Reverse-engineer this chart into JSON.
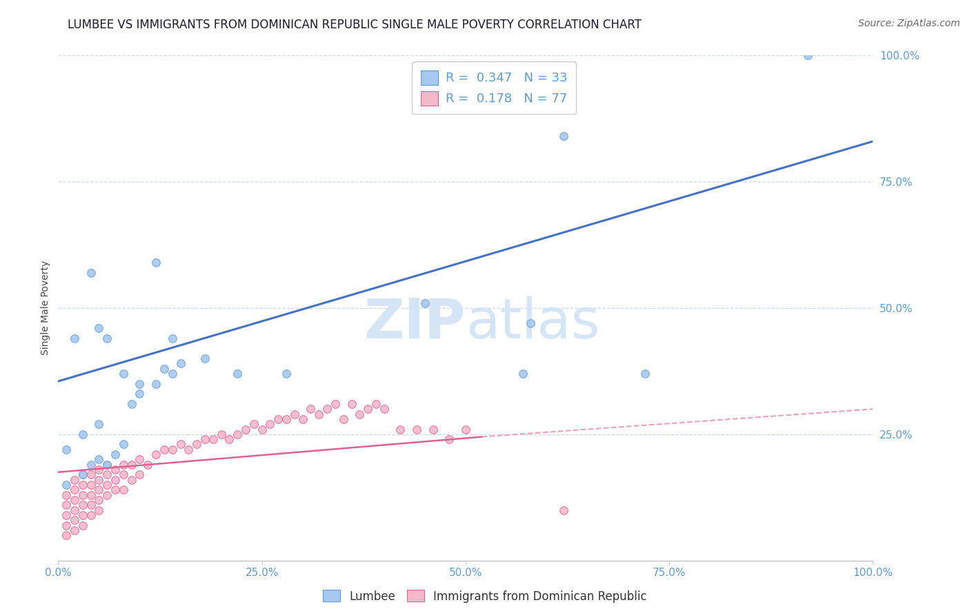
{
  "title": "LUMBEE VS IMMIGRANTS FROM DOMINICAN REPUBLIC SINGLE MALE POVERTY CORRELATION CHART",
  "source": "Source: ZipAtlas.com",
  "ylabel": "Single Male Poverty",
  "xlim": [
    0,
    1
  ],
  "ylim": [
    0,
    1
  ],
  "xticks": [
    0,
    0.25,
    0.5,
    0.75,
    1.0
  ],
  "yticks": [
    0.25,
    0.5,
    0.75,
    1.0
  ],
  "xticklabels": [
    "0.0%",
    "25.0%",
    "50.0%",
    "75.0%",
    "100.0%"
  ],
  "yticklabels": [
    "25.0%",
    "50.0%",
    "75.0%",
    "100.0%"
  ],
  "lumbee_R": 0.347,
  "lumbee_N": 33,
  "dr_R": 0.178,
  "dr_N": 77,
  "lumbee_color": "#a8c8f0",
  "dr_color": "#f5b8cb",
  "lumbee_edge_color": "#5b9bd5",
  "dr_edge_color": "#e06090",
  "lumbee_line_color": "#4472c4",
  "dr_line_color": "#e06090",
  "dr_dash_color": "#e8a0b8",
  "watermark_color": "#d5e5f5",
  "title_color": "#1a1a2e",
  "axis_tick_color": "#5b9bd5",
  "lumbee_line": {
    "x0": 0.0,
    "y0": 0.355,
    "x1": 1.0,
    "y1": 0.83
  },
  "dr_solid_line": {
    "x0": 0.0,
    "y0": 0.175,
    "x1": 0.52,
    "y1": 0.245
  },
  "dr_dash_line": {
    "x0": 0.52,
    "y0": 0.245,
    "x1": 1.0,
    "y1": 0.3
  },
  "lumbee_scatter": {
    "x": [
      0.01,
      0.04,
      0.12,
      0.14,
      0.01,
      0.03,
      0.05,
      0.06,
      0.07,
      0.08,
      0.09,
      0.1,
      0.12,
      0.14,
      0.15,
      0.02,
      0.05,
      0.06,
      0.45,
      0.58,
      0.62,
      0.57,
      0.72,
      0.92,
      0.04,
      0.08,
      0.1,
      0.13,
      0.18,
      0.22,
      0.28,
      0.05,
      0.03
    ],
    "y": [
      0.22,
      0.57,
      0.59,
      0.44,
      0.15,
      0.17,
      0.27,
      0.19,
      0.21,
      0.23,
      0.31,
      0.33,
      0.35,
      0.37,
      0.39,
      0.44,
      0.46,
      0.44,
      0.51,
      0.47,
      0.84,
      0.37,
      0.37,
      1.0,
      0.19,
      0.37,
      0.35,
      0.38,
      0.4,
      0.37,
      0.37,
      0.2,
      0.25
    ]
  },
  "dr_scatter": {
    "x": [
      0.01,
      0.01,
      0.01,
      0.01,
      0.01,
      0.02,
      0.02,
      0.02,
      0.02,
      0.02,
      0.02,
      0.03,
      0.03,
      0.03,
      0.03,
      0.03,
      0.03,
      0.04,
      0.04,
      0.04,
      0.04,
      0.04,
      0.05,
      0.05,
      0.05,
      0.05,
      0.05,
      0.06,
      0.06,
      0.06,
      0.06,
      0.07,
      0.07,
      0.07,
      0.08,
      0.08,
      0.08,
      0.09,
      0.09,
      0.1,
      0.1,
      0.11,
      0.12,
      0.13,
      0.14,
      0.15,
      0.16,
      0.17,
      0.18,
      0.19,
      0.2,
      0.21,
      0.22,
      0.23,
      0.24,
      0.25,
      0.26,
      0.27,
      0.28,
      0.29,
      0.3,
      0.31,
      0.32,
      0.33,
      0.34,
      0.35,
      0.36,
      0.37,
      0.38,
      0.39,
      0.4,
      0.42,
      0.44,
      0.46,
      0.48,
      0.5,
      0.62
    ],
    "y": [
      0.05,
      0.07,
      0.09,
      0.11,
      0.13,
      0.06,
      0.08,
      0.1,
      0.12,
      0.14,
      0.16,
      0.07,
      0.09,
      0.11,
      0.13,
      0.15,
      0.17,
      0.09,
      0.11,
      0.13,
      0.15,
      0.17,
      0.1,
      0.12,
      0.14,
      0.16,
      0.18,
      0.13,
      0.15,
      0.17,
      0.19,
      0.14,
      0.16,
      0.18,
      0.14,
      0.17,
      0.19,
      0.16,
      0.19,
      0.17,
      0.2,
      0.19,
      0.21,
      0.22,
      0.22,
      0.23,
      0.22,
      0.23,
      0.24,
      0.24,
      0.25,
      0.24,
      0.25,
      0.26,
      0.27,
      0.26,
      0.27,
      0.28,
      0.28,
      0.29,
      0.28,
      0.3,
      0.29,
      0.3,
      0.31,
      0.28,
      0.31,
      0.29,
      0.3,
      0.31,
      0.3,
      0.26,
      0.26,
      0.26,
      0.24,
      0.26,
      0.1
    ]
  },
  "background_color": "#ffffff",
  "grid_color": "#c8d8e8",
  "title_fontsize": 12,
  "label_fontsize": 10,
  "tick_fontsize": 11,
  "legend_fontsize": 13
}
